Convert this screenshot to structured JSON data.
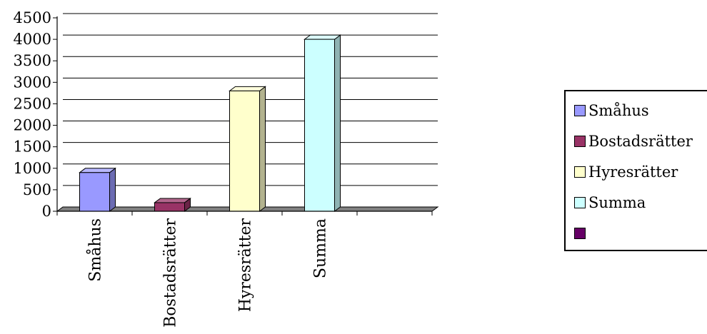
{
  "chart_data": {
    "type": "bar",
    "categories": [
      "Småhus",
      "Bostadsrätter",
      "Hyresrätter",
      "Summa",
      ""
    ],
    "values": [
      900,
      200,
      2800,
      4000,
      null
    ],
    "ylim": [
      0,
      4500
    ],
    "yticks": [
      0,
      500,
      1000,
      1500,
      2000,
      2500,
      3000,
      3500,
      4000,
      4500
    ],
    "ytick_labels": [
      "0",
      "500",
      "1000",
      "1500",
      "2000",
      "2500",
      "3000",
      "3500",
      "4000",
      "4500"
    ],
    "grid": true,
    "legend_position": "right",
    "legend": [
      {
        "label": "Småhus",
        "color": "#9999ff"
      },
      {
        "label": "Bostadsrätter",
        "color": "#993366"
      },
      {
        "label": "Hyresrätter",
        "color": "#ffffcc"
      },
      {
        "label": "Summa",
        "color": "#ccffff"
      },
      {
        "label": "",
        "color": "#660066"
      }
    ],
    "colors": [
      "#9999ff",
      "#993366",
      "#ffffcc",
      "#ccffff",
      "#660066"
    ],
    "side_colors": [
      "#6c6cb3",
      "#6b2447",
      "#b3b38f",
      "#8fb3b3",
      "#470047"
    ],
    "top_colors": [
      "#b8b8ff",
      "#b3668c",
      "#ffffdd",
      "#ddffff",
      "#8c338c"
    ]
  }
}
